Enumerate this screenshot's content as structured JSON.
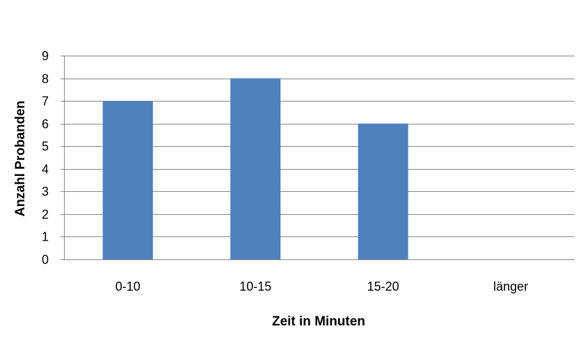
{
  "chart_data": {
    "type": "bar",
    "title": "",
    "xlabel": "Zeit in Minuten",
    "ylabel": "Anzahl Probanden",
    "categories": [
      "0-10",
      "10-15",
      "15-20",
      "länger"
    ],
    "values": [
      7,
      8,
      6,
      0
    ],
    "ylim": [
      0,
      9
    ],
    "yticks": [
      0,
      1,
      2,
      3,
      4,
      5,
      6,
      7,
      8,
      9
    ],
    "grid": true,
    "legend": "none",
    "bar_color": "#4F81BD",
    "grid_color": "#868686"
  }
}
